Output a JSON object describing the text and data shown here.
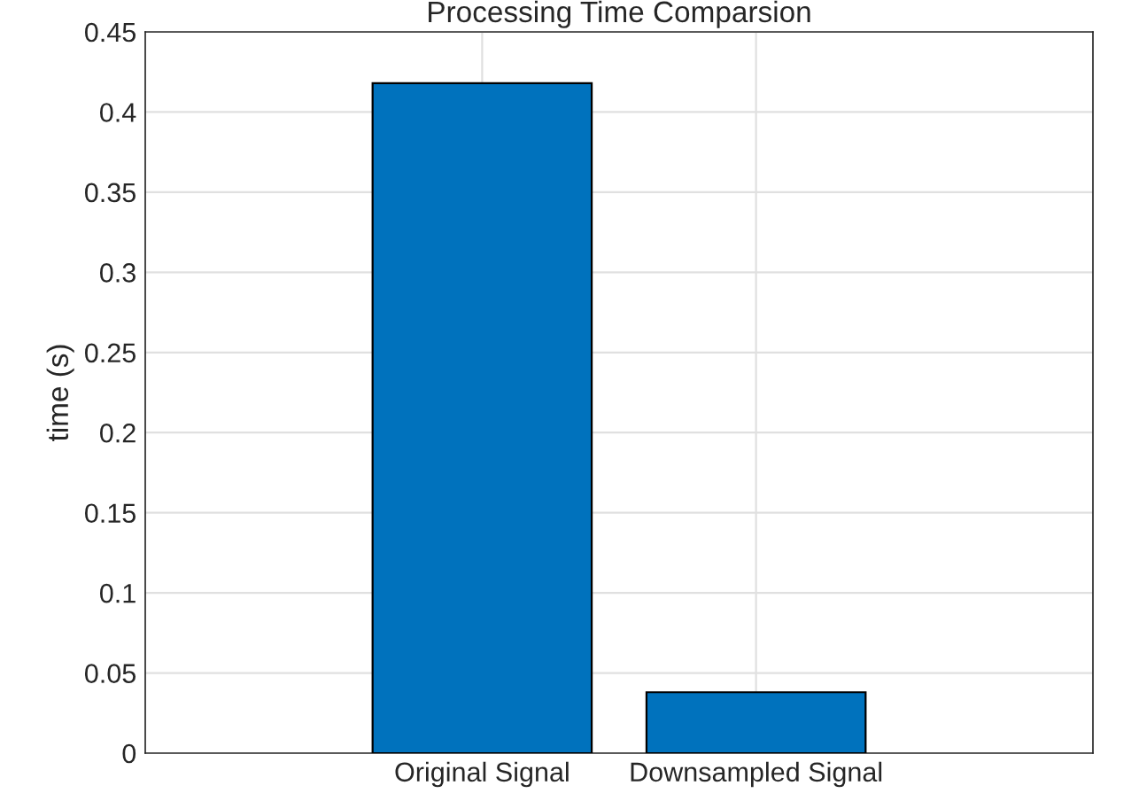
{
  "chart_data": {
    "type": "bar",
    "title": "Processing Time Comparsion",
    "ylabel": "time (s)",
    "categories": [
      "Original Signal",
      "Downsampled Signal"
    ],
    "values": [
      0.418,
      0.038
    ],
    "color": "#0072bd",
    "ylim": [
      0,
      0.45
    ],
    "yticks": [
      0,
      0.05,
      0.1,
      0.15,
      0.2,
      0.25,
      0.3,
      0.35,
      0.4,
      0.45
    ],
    "grid": true
  }
}
